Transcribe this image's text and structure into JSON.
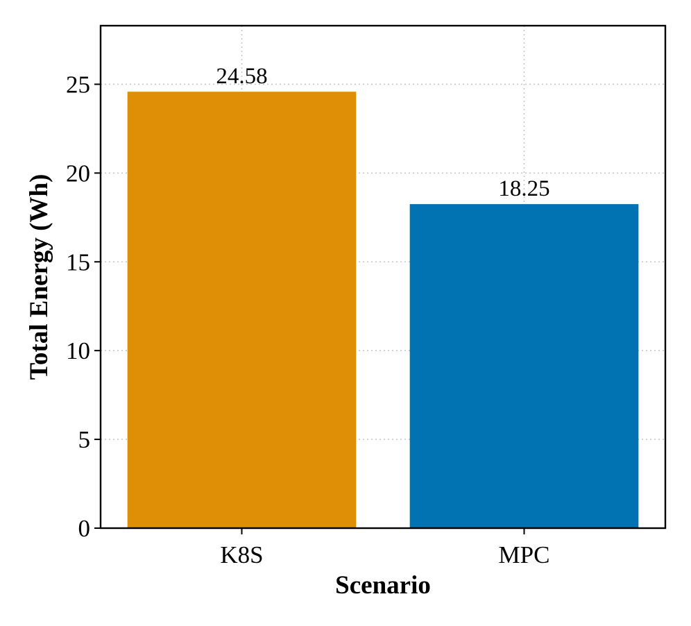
{
  "chart_data": {
    "type": "bar",
    "categories": [
      "K8S",
      "MPC"
    ],
    "values": [
      24.58,
      18.25
    ],
    "value_labels": [
      "24.58",
      "18.25"
    ],
    "colors": [
      "#DE8F05",
      "#0173B2"
    ],
    "xlabel": "Scenario",
    "ylabel": "Total Energy (Wh)",
    "ylim": [
      0,
      28.3
    ],
    "yticks": [
      0,
      5,
      10,
      15,
      20,
      25
    ],
    "ytick_labels": [
      "0",
      "5",
      "10",
      "15",
      "20",
      "25"
    ],
    "grid": true,
    "grid_style": "dotted",
    "legend": "none"
  }
}
